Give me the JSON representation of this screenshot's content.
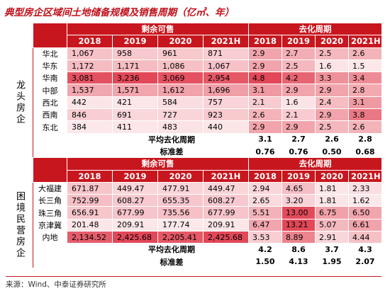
{
  "title": "典型房企区域间土地储备规模及销售周期（亿㎡、年）",
  "sections": [
    {
      "group": "龙头房企",
      "header": {
        "left": "剩余可售",
        "right": "去化周期",
        "years": [
          "2018",
          "2019",
          "2020",
          "2021H"
        ]
      },
      "rows": [
        {
          "region": "华北",
          "stock": [
            "1,067",
            "958",
            "961",
            "871"
          ],
          "cycle": [
            "2.9",
            "2.7",
            "2.5",
            "2.6"
          ]
        },
        {
          "region": "华东",
          "stock": [
            "1,172",
            "1,171",
            "1,086",
            "1,067"
          ],
          "cycle": [
            "2.9",
            "2.5",
            "1.6",
            "1.5"
          ]
        },
        {
          "region": "华南",
          "stock": [
            "3,081",
            "3,236",
            "3,069",
            "2,954"
          ],
          "cycle": [
            "4.8",
            "4.2",
            "3.3",
            "3.4"
          ]
        },
        {
          "region": "中部",
          "stock": [
            "1,537",
            "1,571",
            "1,612",
            "1,696"
          ],
          "cycle": [
            "3.1",
            "2.9",
            "2.9",
            "2.8"
          ]
        },
        {
          "region": "西北",
          "stock": [
            "442",
            "421",
            "584",
            "757"
          ],
          "cycle": [
            "2.1",
            "1.6",
            "2.4",
            "3.1"
          ]
        },
        {
          "region": "西南",
          "stock": [
            "846",
            "691",
            "727",
            "923"
          ],
          "cycle": [
            "2.6",
            "2.1",
            "2.9",
            "3.8"
          ]
        },
        {
          "region": "东北",
          "stock": [
            "384",
            "411",
            "483",
            "440"
          ],
          "cycle": [
            "2.9",
            "2.9",
            "2.5",
            "2.6"
          ]
        }
      ],
      "summary": [
        {
          "label": "平均去化周期",
          "values": [
            "3.1",
            "2.7",
            "2.6",
            "2.8"
          ]
        },
        {
          "label": "标准差",
          "values": [
            "0.76",
            "0.76",
            "0.50",
            "0.68"
          ]
        }
      ]
    },
    {
      "group": "困境民营房企",
      "header": {
        "left": "剩余可售",
        "right": "去化周期",
        "years": [
          "2018",
          "2019",
          "2020",
          "2021H"
        ]
      },
      "rows": [
        {
          "region": "大福建",
          "stock": [
            "671.87",
            "449.47",
            "477.91",
            "449.47"
          ],
          "cycle": [
            "2.94",
            "4.65",
            "1.81",
            "2.33"
          ]
        },
        {
          "region": "长三角",
          "stock": [
            "752.99",
            "608.27",
            "655.35",
            "608.27"
          ],
          "cycle": [
            "2.65",
            "3.20",
            "1.81",
            "1.62"
          ]
        },
        {
          "region": "珠三角",
          "stock": [
            "656.91",
            "677.99",
            "735.56",
            "677.99"
          ],
          "cycle": [
            "5.51",
            "13.00",
            "6.75",
            "6.50"
          ]
        },
        {
          "region": "京津冀",
          "stock": [
            "201.48",
            "209.91",
            "177.74",
            "209.91"
          ],
          "cycle": [
            "6.47",
            "13.21",
            "5.07",
            "6.61"
          ]
        },
        {
          "region": "内地",
          "stock": [
            "2,134.52",
            "2,425.68",
            "2,205.41",
            "2,425.68"
          ],
          "cycle": [
            "3.53",
            "8.89",
            "2.91",
            "4.44"
          ]
        }
      ],
      "summary": [
        {
          "label": "平均去化周期",
          "values": [
            "4.2",
            "8.6",
            "3.7",
            "4.3"
          ]
        },
        {
          "label": "标准差",
          "values": [
            "1.50",
            "4.13",
            "1.95",
            "2.07"
          ]
        }
      ]
    }
  ],
  "source": "来源：Wind、中泰证券研究所"
}
